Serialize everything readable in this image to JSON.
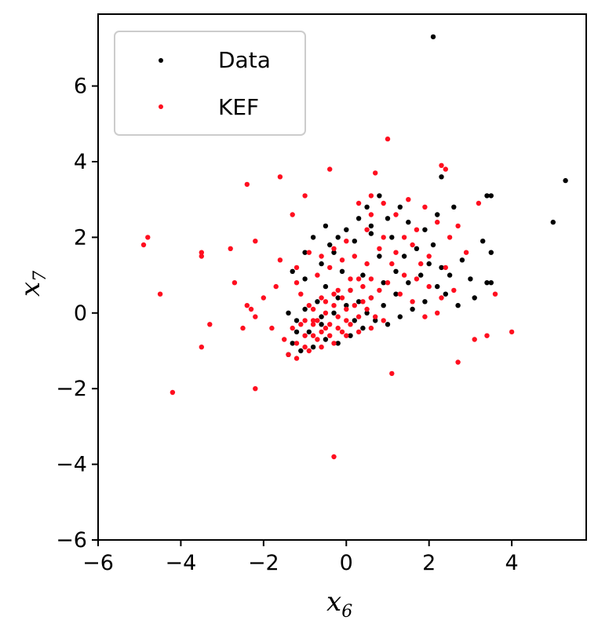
{
  "colors": {
    "data": "#000000",
    "kef": "#ff0e1f",
    "axes": "#000000",
    "background": "#ffffff"
  },
  "chart_data": {
    "type": "scatter",
    "title": "",
    "xlabel": "x",
    "xlabel_sub": "6",
    "ylabel": "x",
    "ylabel_sub": "7",
    "xlim": [
      -6,
      5.8
    ],
    "ylim": [
      -6,
      7.9
    ],
    "xticks": [
      -6,
      -4,
      -2,
      0,
      2,
      4
    ],
    "xtick_labels": [
      "−6",
      "−4",
      "−2",
      "0",
      "2",
      "4"
    ],
    "yticks": [
      -6,
      -4,
      -2,
      0,
      2,
      4,
      6
    ],
    "ytick_labels": [
      "−6",
      "−4",
      "−2",
      "0",
      "2",
      "4",
      "6"
    ],
    "grid": false,
    "legend_position": "top-left",
    "series": [
      {
        "name": "Data",
        "color": "#000000",
        "points": [
          [
            2.1,
            7.3
          ],
          [
            5.3,
            3.5
          ],
          [
            5.0,
            2.4
          ],
          [
            3.4,
            3.1
          ],
          [
            3.5,
            3.1
          ],
          [
            2.3,
            3.6
          ],
          [
            2.6,
            2.8
          ],
          [
            3.5,
            1.6
          ],
          [
            3.3,
            1.9
          ],
          [
            3.5,
            0.8
          ],
          [
            3.4,
            0.8
          ],
          [
            3.1,
            0.4
          ],
          [
            3.0,
            0.9
          ],
          [
            2.8,
            1.4
          ],
          [
            2.5,
            1.0
          ],
          [
            2.2,
            0.7
          ],
          [
            1.9,
            0.3
          ],
          [
            2.4,
            0.5
          ],
          [
            2.7,
            0.2
          ],
          [
            2.0,
            1.3
          ],
          [
            1.7,
            1.7
          ],
          [
            1.5,
            2.4
          ],
          [
            1.0,
            2.5
          ],
          [
            0.8,
            3.1
          ],
          [
            0.5,
            2.8
          ],
          [
            0.3,
            2.5
          ],
          [
            0.0,
            2.2
          ],
          [
            -0.2,
            2.0
          ],
          [
            -0.5,
            2.3
          ],
          [
            -0.8,
            2.0
          ],
          [
            -1.0,
            1.6
          ],
          [
            -1.3,
            1.1
          ],
          [
            -1.0,
            0.9
          ],
          [
            -0.6,
            1.3
          ],
          [
            -0.3,
            1.6
          ],
          [
            0.2,
            1.9
          ],
          [
            0.6,
            2.1
          ],
          [
            1.1,
            2.0
          ],
          [
            1.4,
            1.5
          ],
          [
            1.2,
            1.1
          ],
          [
            0.9,
            0.8
          ],
          [
            0.4,
            1.0
          ],
          [
            0.1,
            0.6
          ],
          [
            -0.2,
            0.4
          ],
          [
            -0.5,
            0.7
          ],
          [
            -0.7,
            0.3
          ],
          [
            -1.0,
            0.1
          ],
          [
            -1.2,
            -0.2
          ],
          [
            -1.4,
            0.0
          ],
          [
            -0.9,
            -0.5
          ],
          [
            -0.6,
            -0.3
          ],
          [
            -0.3,
            0.0
          ],
          [
            0.0,
            0.2
          ],
          [
            0.3,
            0.3
          ],
          [
            0.6,
            0.4
          ],
          [
            0.9,
            0.2
          ],
          [
            1.2,
            0.5
          ],
          [
            1.5,
            0.8
          ],
          [
            1.8,
            1.0
          ],
          [
            2.1,
            1.8
          ],
          [
            2.3,
            1.2
          ],
          [
            1.6,
            0.1
          ],
          [
            1.3,
            -0.1
          ],
          [
            1.0,
            -0.3
          ],
          [
            0.7,
            -0.2
          ],
          [
            0.4,
            -0.4
          ],
          [
            0.1,
            -0.6
          ],
          [
            -0.2,
            -0.8
          ],
          [
            -0.5,
            -0.7
          ],
          [
            -0.8,
            -0.9
          ],
          [
            -1.1,
            -1.0
          ],
          [
            -1.3,
            -0.8
          ],
          [
            -0.4,
            1.8
          ],
          [
            0.8,
            1.5
          ],
          [
            1.9,
            2.2
          ],
          [
            2.2,
            2.6
          ],
          [
            1.3,
            2.8
          ],
          [
            0.6,
            2.3
          ],
          [
            -0.1,
            1.1
          ],
          [
            0.2,
            -0.2
          ],
          [
            -0.6,
            -0.1
          ],
          [
            0.5,
            0.0
          ],
          [
            -1.4,
            -1.1
          ],
          [
            -1.2,
            -0.5
          ]
        ]
      },
      {
        "name": "KEF",
        "color": "#ff0e1f",
        "points": [
          [
            -4.9,
            1.8
          ],
          [
            -4.8,
            2.0
          ],
          [
            -4.5,
            0.5
          ],
          [
            -3.5,
            1.6
          ],
          [
            -3.5,
            1.5
          ],
          [
            -3.3,
            -0.3
          ],
          [
            -3.5,
            -0.9
          ],
          [
            -4.2,
            -2.1
          ],
          [
            -2.2,
            -2.0
          ],
          [
            -2.8,
            1.7
          ],
          [
            -2.4,
            3.4
          ],
          [
            -1.6,
            3.6
          ],
          [
            -1.0,
            3.1
          ],
          [
            -0.4,
            3.8
          ],
          [
            0.7,
            3.7
          ],
          [
            1.0,
            4.6
          ],
          [
            2.3,
            3.9
          ],
          [
            2.4,
            3.8
          ],
          [
            -1.3,
            2.6
          ],
          [
            -2.2,
            1.9
          ],
          [
            -2.7,
            0.8
          ],
          [
            -2.4,
            0.2
          ],
          [
            -2.3,
            0.1
          ],
          [
            -2.0,
            0.4
          ],
          [
            -1.8,
            -0.4
          ],
          [
            -2.2,
            -0.1
          ],
          [
            -1.7,
            0.7
          ],
          [
            -1.6,
            1.4
          ],
          [
            -1.2,
            0.8
          ],
          [
            -2.5,
            -0.4
          ],
          [
            -0.3,
            -3.8
          ],
          [
            1.1,
            -1.6
          ],
          [
            3.1,
            -0.7
          ],
          [
            4.0,
            -0.5
          ],
          [
            2.7,
            -1.3
          ],
          [
            3.4,
            -0.6
          ],
          [
            3.6,
            0.5
          ],
          [
            3.2,
            2.9
          ],
          [
            2.5,
            2.0
          ],
          [
            2.0,
            1.5
          ],
          [
            1.7,
            2.2
          ],
          [
            1.4,
            2.0
          ],
          [
            1.5,
            3.0
          ],
          [
            1.2,
            2.6
          ],
          [
            0.9,
            2.9
          ],
          [
            0.6,
            3.1
          ],
          [
            0.5,
            2.2
          ],
          [
            0.3,
            2.9
          ],
          [
            0.0,
            1.9
          ],
          [
            -0.3,
            1.7
          ],
          [
            -0.6,
            1.5
          ],
          [
            -0.9,
            1.6
          ],
          [
            -1.2,
            1.2
          ],
          [
            -1.1,
            0.5
          ],
          [
            -0.7,
            1.0
          ],
          [
            -0.4,
            1.2
          ],
          [
            -0.1,
            1.4
          ],
          [
            0.2,
            1.5
          ],
          [
            0.5,
            1.3
          ],
          [
            0.8,
            1.7
          ],
          [
            1.1,
            1.3
          ],
          [
            1.4,
            1.0
          ],
          [
            1.7,
            0.9
          ],
          [
            2.0,
            0.7
          ],
          [
            2.3,
            0.4
          ],
          [
            2.6,
            0.6
          ],
          [
            2.9,
            1.6
          ],
          [
            2.7,
            2.3
          ],
          [
            2.2,
            2.4
          ],
          [
            1.9,
            2.8
          ],
          [
            0.4,
            0.7
          ],
          [
            0.1,
            0.9
          ],
          [
            -0.2,
            0.6
          ],
          [
            -0.5,
            0.3
          ],
          [
            -0.8,
            0.1
          ],
          [
            -1.0,
            -0.2
          ],
          [
            -1.3,
            -0.4
          ],
          [
            -1.5,
            -0.7
          ],
          [
            -1.4,
            -1.1
          ],
          [
            -1.2,
            -1.2
          ],
          [
            -1.0,
            -0.9
          ],
          [
            -0.8,
            -0.6
          ],
          [
            -0.6,
            -0.5
          ],
          [
            -0.4,
            -0.3
          ],
          [
            -0.2,
            -0.1
          ],
          [
            0.0,
            0.1
          ],
          [
            0.2,
            0.2
          ],
          [
            0.4,
            0.3
          ],
          [
            0.6,
            0.4
          ],
          [
            0.8,
            0.6
          ],
          [
            1.0,
            0.8
          ],
          [
            1.3,
            0.5
          ],
          [
            1.6,
            0.3
          ],
          [
            1.9,
            -0.1
          ],
          [
            2.2,
            0.0
          ],
          [
            0.9,
            -0.2
          ],
          [
            0.6,
            -0.4
          ],
          [
            0.3,
            -0.5
          ],
          [
            0.0,
            -0.6
          ],
          [
            -0.3,
            -0.8
          ],
          [
            -0.6,
            -0.9
          ],
          [
            -0.9,
            -1.0
          ],
          [
            -1.2,
            -0.8
          ],
          [
            -1.1,
            -0.3
          ],
          [
            -0.9,
            0.2
          ],
          [
            -0.7,
            -0.2
          ],
          [
            -0.5,
            0.0
          ],
          [
            -0.3,
            0.2
          ],
          [
            -0.1,
            0.4
          ],
          [
            0.1,
            -0.3
          ],
          [
            0.3,
            -0.1
          ],
          [
            0.5,
            0.1
          ],
          [
            0.7,
            -0.1
          ],
          [
            -0.2,
            -0.4
          ],
          [
            -0.4,
            -0.6
          ],
          [
            -0.7,
            -0.7
          ],
          [
            -1.0,
            -0.6
          ],
          [
            -0.8,
            -0.3
          ],
          [
            -0.6,
            0.4
          ],
          [
            -0.3,
            0.5
          ],
          [
            0.1,
            0.6
          ],
          [
            0.3,
            0.9
          ],
          [
            0.6,
            0.9
          ],
          [
            1.2,
            1.6
          ],
          [
            0.9,
            2.0
          ],
          [
            0.6,
            2.6
          ],
          [
            1.6,
            1.8
          ],
          [
            1.8,
            1.3
          ],
          [
            2.4,
            1.2
          ],
          [
            0.0,
            -0.2
          ],
          [
            -0.1,
            -0.5
          ],
          [
            -0.5,
            -0.4
          ],
          [
            -0.8,
            -0.2
          ]
        ]
      }
    ]
  }
}
